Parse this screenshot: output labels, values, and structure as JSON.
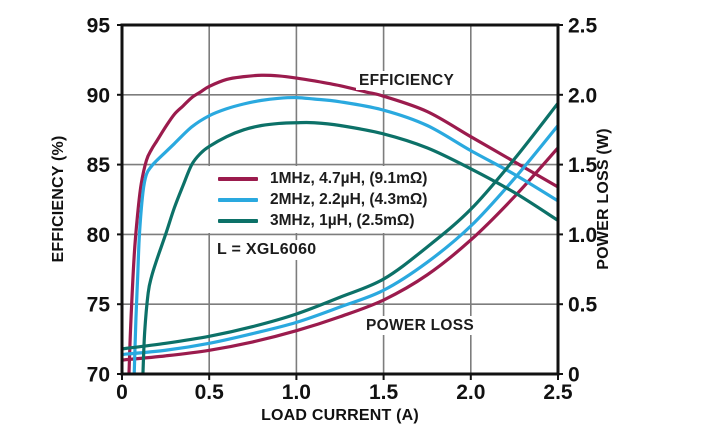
{
  "chart_data": {
    "type": "line",
    "xlabel": "LOAD CURRENT (A)",
    "ylabel_left": "EFFICIENCY (%)",
    "ylabel_right": "POWER LOSS (W)",
    "x_range": [
      0,
      2.5
    ],
    "y_left_range": [
      70,
      95
    ],
    "y_right_range": [
      0,
      2.5
    ],
    "x_ticks": [
      "0",
      "0.5",
      "1.0",
      "1.5",
      "2.0",
      "2.5"
    ],
    "y_left_ticks": [
      "70",
      "75",
      "80",
      "85",
      "90",
      "95"
    ],
    "y_right_ticks": [
      "0",
      "0.5",
      "1.0",
      "1.5",
      "2.0",
      "2.5"
    ],
    "grid": true,
    "legend_position": "inside-middle-left",
    "axis_color": "#111111",
    "grid_color": "#7d7d7d",
    "annotations": {
      "efficiency_label": "EFFICIENCY",
      "power_loss_label": "POWER LOSS",
      "inductor_note": "L = XGL6060"
    },
    "series": [
      {
        "freq": "1MHz",
        "label": "1MHz, 4.7µH, (9.1mΩ)",
        "color": "#9b1b4d",
        "efficiency_pct_vs_A": [
          [
            0.04,
            70
          ],
          [
            0.05,
            73.5
          ],
          [
            0.07,
            78.5
          ],
          [
            0.09,
            81.5
          ],
          [
            0.11,
            83.6
          ],
          [
            0.14,
            85.3
          ],
          [
            0.17,
            86.1
          ],
          [
            0.2,
            86.7
          ],
          [
            0.25,
            87.7
          ],
          [
            0.3,
            88.6
          ],
          [
            0.35,
            89.2
          ],
          [
            0.4,
            89.8
          ],
          [
            0.45,
            90.2
          ],
          [
            0.5,
            90.6
          ],
          [
            0.6,
            91.1
          ],
          [
            0.7,
            91.3
          ],
          [
            0.8,
            91.4
          ],
          [
            0.9,
            91.35
          ],
          [
            1.0,
            91.2
          ],
          [
            1.1,
            91.0
          ],
          [
            1.25,
            90.65
          ],
          [
            1.4,
            90.2
          ],
          [
            1.5,
            89.9
          ],
          [
            1.75,
            88.8
          ],
          [
            2.0,
            87.0
          ],
          [
            2.25,
            85.2
          ],
          [
            2.5,
            83.4
          ]
        ],
        "power_loss_W_vs_A": [
          [
            0,
            0.1
          ],
          [
            0.25,
            0.13
          ],
          [
            0.5,
            0.17
          ],
          [
            0.75,
            0.23
          ],
          [
            1.0,
            0.31
          ],
          [
            1.25,
            0.41
          ],
          [
            1.5,
            0.53
          ],
          [
            1.75,
            0.71
          ],
          [
            2.0,
            0.96
          ],
          [
            2.25,
            1.27
          ],
          [
            2.5,
            1.62
          ]
        ]
      },
      {
        "freq": "2MHz",
        "label": "2MHz, 2.2µH, (4.3mΩ)",
        "color": "#2aa9df",
        "efficiency_pct_vs_A": [
          [
            0.07,
            70
          ],
          [
            0.08,
            74
          ],
          [
            0.09,
            77
          ],
          [
            0.1,
            80
          ],
          [
            0.12,
            83
          ],
          [
            0.14,
            84.3
          ],
          [
            0.17,
            84.9
          ],
          [
            0.2,
            85.3
          ],
          [
            0.25,
            85.9
          ],
          [
            0.3,
            86.5
          ],
          [
            0.4,
            87.7
          ],
          [
            0.5,
            88.5
          ],
          [
            0.6,
            89.0
          ],
          [
            0.7,
            89.35
          ],
          [
            0.8,
            89.6
          ],
          [
            0.9,
            89.75
          ],
          [
            1.0,
            89.8
          ],
          [
            1.1,
            89.7
          ],
          [
            1.25,
            89.5
          ],
          [
            1.5,
            88.9
          ],
          [
            1.75,
            87.8
          ],
          [
            2.0,
            86.0
          ],
          [
            2.25,
            84.3
          ],
          [
            2.5,
            82.4
          ]
        ],
        "power_loss_W_vs_A": [
          [
            0,
            0.14
          ],
          [
            0.25,
            0.17
          ],
          [
            0.5,
            0.22
          ],
          [
            0.75,
            0.29
          ],
          [
            1.0,
            0.37
          ],
          [
            1.25,
            0.48
          ],
          [
            1.5,
            0.6
          ],
          [
            1.75,
            0.8
          ],
          [
            2.0,
            1.06
          ],
          [
            2.25,
            1.4
          ],
          [
            2.5,
            1.78
          ]
        ]
      },
      {
        "freq": "3MHz",
        "label": "3MHz, 1µH, (2.5mΩ)",
        "color": "#0c7168",
        "efficiency_pct_vs_A": [
          [
            0.12,
            70
          ],
          [
            0.13,
            73
          ],
          [
            0.15,
            75.8
          ],
          [
            0.17,
            77.0
          ],
          [
            0.2,
            78.2
          ],
          [
            0.25,
            80.0
          ],
          [
            0.3,
            81.9
          ],
          [
            0.35,
            83.5
          ],
          [
            0.4,
            85.0
          ],
          [
            0.45,
            85.8
          ],
          [
            0.5,
            86.3
          ],
          [
            0.6,
            87.0
          ],
          [
            0.7,
            87.5
          ],
          [
            0.8,
            87.8
          ],
          [
            0.9,
            87.95
          ],
          [
            1.0,
            88.0
          ],
          [
            1.1,
            88.0
          ],
          [
            1.25,
            87.8
          ],
          [
            1.5,
            87.2
          ],
          [
            1.75,
            86.2
          ],
          [
            2.0,
            84.7
          ],
          [
            2.25,
            83.0
          ],
          [
            2.5,
            81.0
          ]
        ],
        "power_loss_W_vs_A": [
          [
            0,
            0.18
          ],
          [
            0.25,
            0.22
          ],
          [
            0.5,
            0.27
          ],
          [
            0.75,
            0.34
          ],
          [
            1.0,
            0.43
          ],
          [
            1.25,
            0.55
          ],
          [
            1.5,
            0.68
          ],
          [
            1.75,
            0.91
          ],
          [
            2.0,
            1.18
          ],
          [
            2.25,
            1.54
          ],
          [
            2.5,
            1.94
          ]
        ]
      }
    ]
  }
}
